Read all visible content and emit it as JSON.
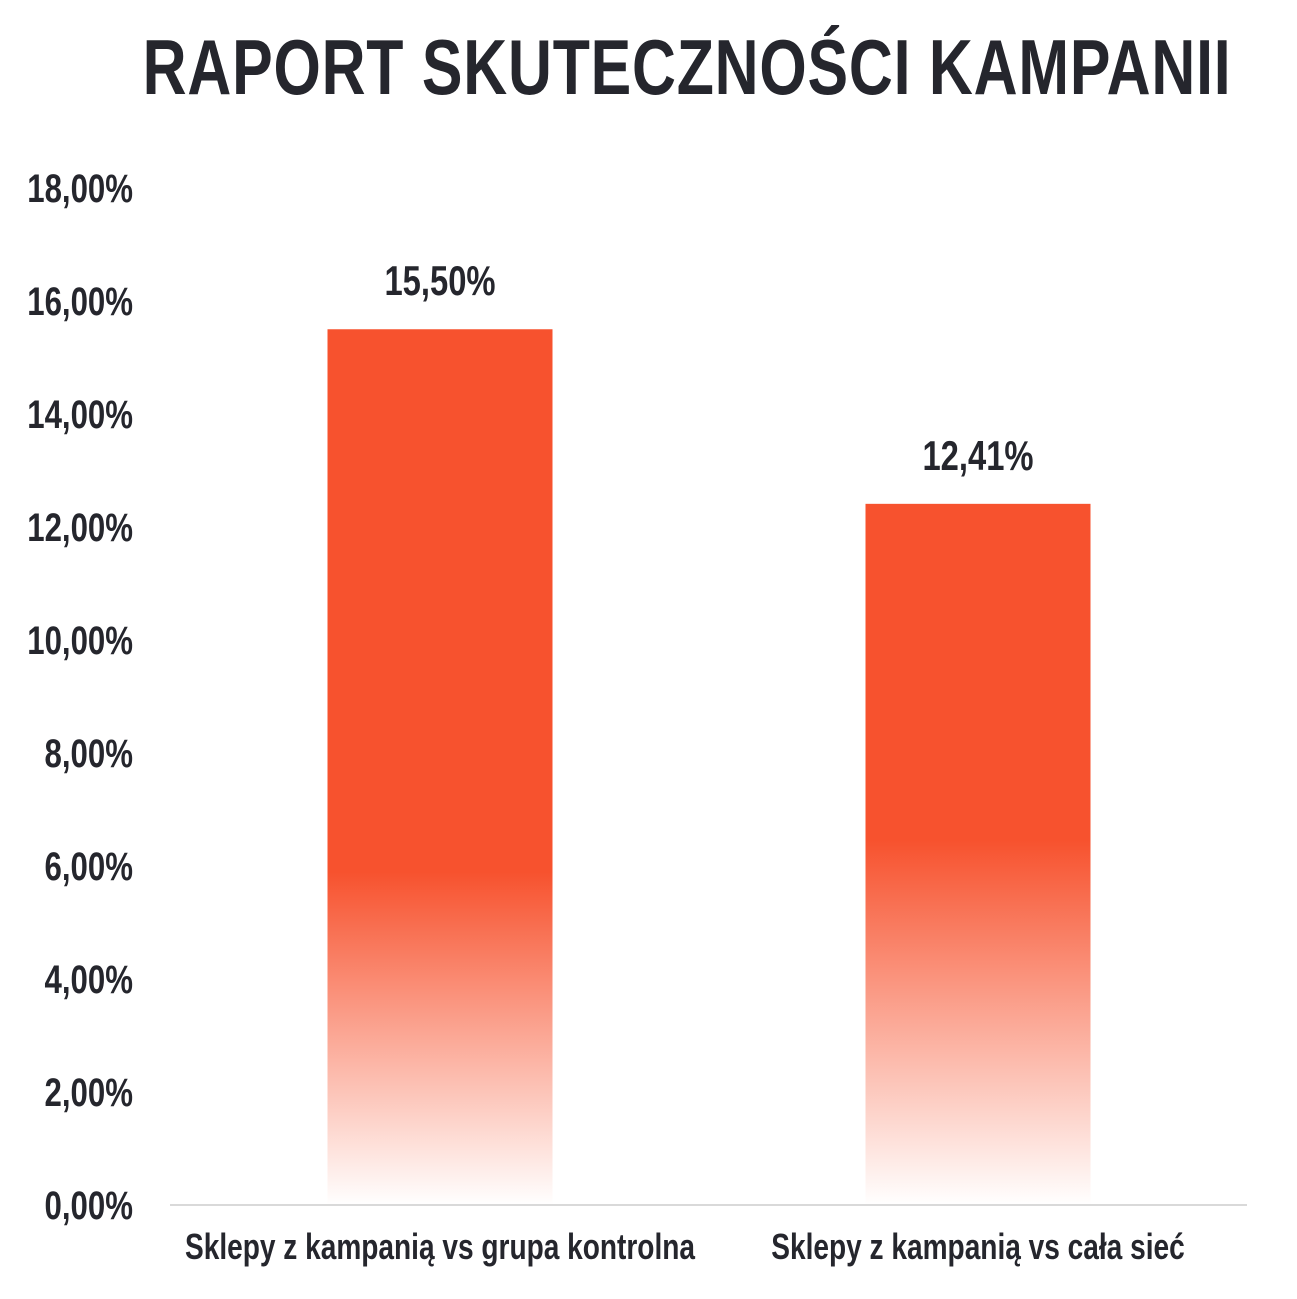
{
  "chart_data": {
    "type": "bar",
    "title": "RAPORT SKUTECZNOŚCI KAMPANII",
    "categories": [
      "Sklepy z kampanią vs grupa kontrolna",
      "Sklepy z kampanią vs cała sieć"
    ],
    "values": [
      15.5,
      12.41
    ],
    "value_labels": [
      "15,50%",
      "12,41%"
    ],
    "ylim": [
      0,
      18
    ],
    "yticks": [
      0,
      2,
      4,
      6,
      8,
      10,
      12,
      14,
      16,
      18
    ],
    "ytick_labels": [
      "0,00%",
      "2,00%",
      "4,00%",
      "6,00%",
      "8,00%",
      "10,00%",
      "12,00%",
      "14,00%",
      "16,00%",
      "18,00%"
    ],
    "xlabel": "",
    "ylabel": "",
    "grid": false,
    "legend": "none",
    "bar_color": "#f7522e",
    "bar_fill": "gradient fading to white at the baseline",
    "text_color": "#25262d",
    "axis_color": "#d9d9d9"
  }
}
